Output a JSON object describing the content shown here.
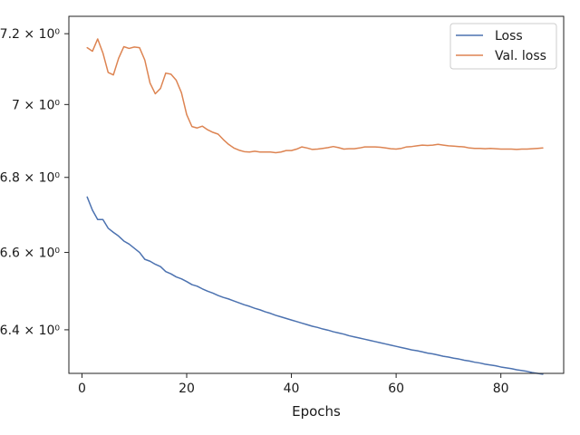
{
  "chart_data": {
    "type": "line",
    "title": "",
    "xlabel": "Epochs",
    "ylabel": "",
    "yscale": "log",
    "xlim": [
      -2.5,
      92
    ],
    "ylim": [
      6.29,
      7.25
    ],
    "x_ticks": [
      0,
      20,
      40,
      60,
      80
    ],
    "x_tick_labels": [
      "0",
      "20",
      "40",
      "60",
      "80"
    ],
    "y_ticks": [
      6.4,
      6.6,
      6.8,
      7.0,
      7.2
    ],
    "y_tick_labels": [
      "6.4 × 10⁰",
      "6.6 × 10⁰",
      "6.8 × 10⁰",
      "7 × 10⁰",
      "7.2 × 10⁰"
    ],
    "grid": false,
    "legend_position": "top-right",
    "series": [
      {
        "name": "Loss",
        "color": "#4c72b0",
        "x": [
          1,
          2,
          3,
          4,
          5,
          6,
          7,
          8,
          9,
          10,
          11,
          12,
          13,
          14,
          15,
          16,
          17,
          18,
          19,
          20,
          21,
          22,
          23,
          24,
          25,
          26,
          27,
          28,
          29,
          30,
          31,
          32,
          33,
          34,
          35,
          36,
          37,
          38,
          39,
          40,
          41,
          42,
          43,
          44,
          45,
          46,
          47,
          48,
          49,
          50,
          51,
          52,
          53,
          54,
          55,
          56,
          57,
          58,
          59,
          60,
          61,
          62,
          63,
          64,
          65,
          66,
          67,
          68,
          69,
          70,
          71,
          72,
          73,
          74,
          75,
          76,
          77,
          78,
          79,
          80,
          81,
          82,
          83,
          84,
          85,
          86,
          87,
          88
        ],
        "values": [
          6.747,
          6.712,
          6.687,
          6.687,
          6.664,
          6.653,
          6.643,
          6.63,
          6.622,
          6.611,
          6.6,
          6.582,
          6.577,
          6.569,
          6.563,
          6.55,
          6.544,
          6.536,
          6.531,
          6.524,
          6.516,
          6.512,
          6.505,
          6.499,
          6.494,
          6.488,
          6.483,
          6.479,
          6.474,
          6.469,
          6.464,
          6.46,
          6.455,
          6.451,
          6.446,
          6.442,
          6.437,
          6.433,
          6.429,
          6.425,
          6.421,
          6.417,
          6.413,
          6.409,
          6.406,
          6.402,
          6.399,
          6.395,
          6.392,
          6.389,
          6.385,
          6.382,
          6.379,
          6.376,
          6.373,
          6.37,
          6.367,
          6.364,
          6.361,
          6.358,
          6.355,
          6.352,
          6.349,
          6.347,
          6.344,
          6.341,
          6.339,
          6.336,
          6.333,
          6.331,
          6.328,
          6.326,
          6.323,
          6.321,
          6.318,
          6.316,
          6.313,
          6.311,
          6.309,
          6.306,
          6.304,
          6.302,
          6.299,
          6.297,
          6.295,
          6.292,
          6.29,
          6.288
        ]
      },
      {
        "name": "Val. loss",
        "color": "#dd8452",
        "x": [
          1,
          2,
          3,
          4,
          5,
          6,
          7,
          8,
          9,
          10,
          11,
          12,
          13,
          14,
          15,
          16,
          17,
          18,
          19,
          20,
          21,
          22,
          23,
          24,
          25,
          26,
          27,
          28,
          29,
          30,
          31,
          32,
          33,
          34,
          35,
          36,
          37,
          38,
          39,
          40,
          41,
          42,
          43,
          44,
          45,
          46,
          47,
          48,
          49,
          50,
          51,
          52,
          53,
          54,
          55,
          56,
          57,
          58,
          59,
          60,
          61,
          62,
          63,
          64,
          65,
          66,
          67,
          68,
          69,
          70,
          71,
          72,
          73,
          74,
          75,
          76,
          77,
          78,
          79,
          80,
          81,
          82,
          83,
          84,
          85,
          86,
          87,
          88
        ],
        "values": [
          7.16,
          7.15,
          7.185,
          7.145,
          7.09,
          7.083,
          7.13,
          7.163,
          7.158,
          7.162,
          7.16,
          7.125,
          7.06,
          7.03,
          7.045,
          7.088,
          7.085,
          7.068,
          7.033,
          6.972,
          6.939,
          6.935,
          6.94,
          6.93,
          6.923,
          6.918,
          6.903,
          6.89,
          6.88,
          6.874,
          6.87,
          6.869,
          6.871,
          6.869,
          6.869,
          6.869,
          6.867,
          6.869,
          6.873,
          6.873,
          6.877,
          6.883,
          6.88,
          6.876,
          6.877,
          6.879,
          6.881,
          6.884,
          6.881,
          6.877,
          6.878,
          6.878,
          6.88,
          6.883,
          6.883,
          6.883,
          6.882,
          6.88,
          6.878,
          6.877,
          6.879,
          6.883,
          6.884,
          6.886,
          6.888,
          6.887,
          6.888,
          6.89,
          6.888,
          6.886,
          6.885,
          6.884,
          6.883,
          6.88,
          6.879,
          6.879,
          6.878,
          6.879,
          6.878,
          6.877,
          6.877,
          6.877,
          6.876,
          6.877,
          6.877,
          6.878,
          6.879,
          6.88
        ]
      }
    ]
  }
}
